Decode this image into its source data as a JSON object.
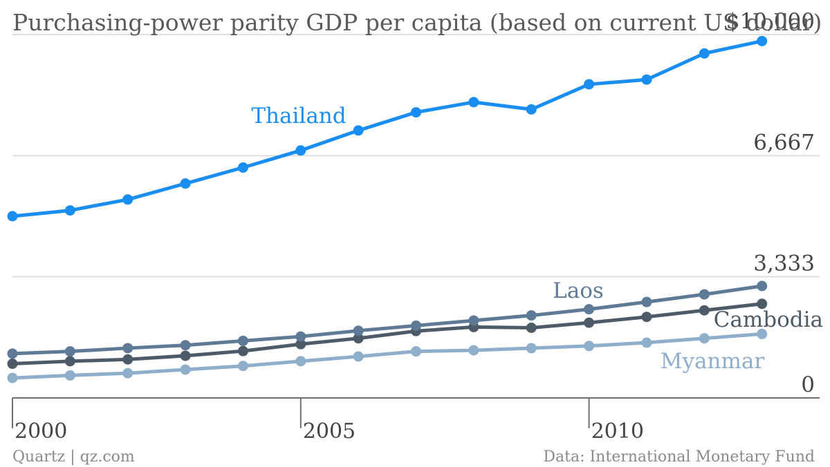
{
  "chart_data": {
    "type": "line",
    "title": "Purchasing-power parity GDP per capita (based on current US dollar)",
    "xlabel": "",
    "ylabel": "",
    "x": [
      2000,
      2001,
      2002,
      2003,
      2004,
      2005,
      2006,
      2007,
      2008,
      2009,
      2010,
      2011,
      2012,
      2013
    ],
    "xlim": [
      2000,
      2014
    ],
    "ylim": [
      0,
      10000
    ],
    "y_ticks": [
      0,
      3333,
      6667,
      10000
    ],
    "y_tick_labels": [
      "0",
      "3,333",
      "6,667",
      "$10,000"
    ],
    "x_ticks": [
      2000,
      2005,
      2010
    ],
    "x_tick_labels": [
      "2000",
      "2005",
      "2010"
    ],
    "grid": true,
    "legend": "inline labels",
    "series": [
      {
        "name": "Thailand",
        "color": "#1a8ef0",
        "values": [
          5000,
          5160,
          5460,
          5900,
          6340,
          6810,
          7360,
          7860,
          8140,
          7940,
          8630,
          8760,
          9480,
          9820
        ]
      },
      {
        "name": "Laos",
        "color": "#5f7a96",
        "values": [
          1220,
          1280,
          1370,
          1450,
          1570,
          1690,
          1850,
          1990,
          2130,
          2270,
          2440,
          2640,
          2850,
          3080
        ]
      },
      {
        "name": "Cambodia",
        "color": "#4d5a68",
        "values": [
          940,
          1010,
          1060,
          1160,
          1290,
          1480,
          1640,
          1840,
          1950,
          1930,
          2070,
          2230,
          2410,
          2590
        ]
      },
      {
        "name": "Myanmar",
        "color": "#8eaecb",
        "values": [
          550,
          620,
          680,
          780,
          880,
          1010,
          1140,
          1280,
          1310,
          1370,
          1430,
          1520,
          1640,
          1760
        ]
      }
    ]
  },
  "footer": {
    "source_left": "Quartz | qz.com",
    "source_right": "Data: International Monetary Fund"
  }
}
